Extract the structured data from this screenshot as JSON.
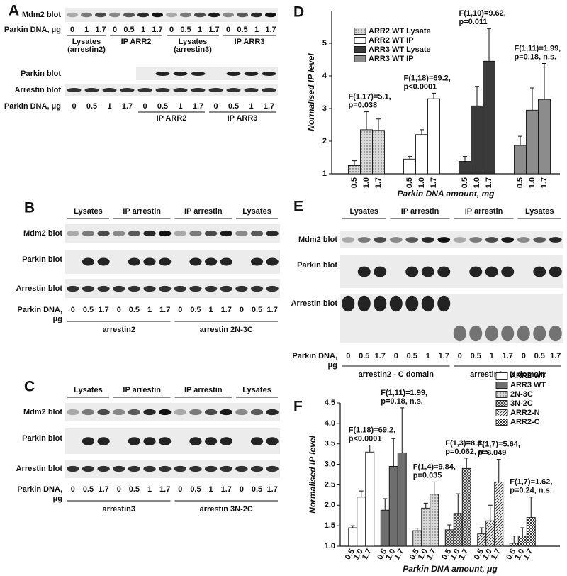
{
  "panel_letters": [
    "A",
    "B",
    "C",
    "D",
    "E",
    "F"
  ],
  "blots": {
    "A_top": {
      "rows": [
        "Mdm2 blot"
      ],
      "dna_label": [
        "Parkin DNA, μg"
      ],
      "groups": [
        {
          "label": [
            "Lysates",
            "(arrestin2)"
          ],
          "lanes": [
            "0",
            "1",
            "1.7"
          ]
        },
        {
          "label": [
            "IP ARR2"
          ],
          "lanes": [
            "0",
            "0.5",
            "1",
            "1.7"
          ]
        },
        {
          "label": [
            "Lysates",
            "(arrestin3)"
          ],
          "lanes": [
            "0",
            "0.5",
            "1",
            "1.7"
          ]
        },
        {
          "label": [
            "IP ARR3"
          ],
          "lanes": [
            "0",
            "0.5",
            "1",
            "1.7"
          ]
        }
      ]
    },
    "A_bottom": {
      "rows": [
        "Parkin blot",
        "Arrestin blot"
      ],
      "dna_label": [
        "Parkin DNA, μg"
      ],
      "groups": [
        {
          "lanes": [
            "0",
            "0.5",
            "1",
            "1.7"
          ]
        },
        {
          "label": [
            "IP ARR2"
          ],
          "lanes": [
            "0",
            "0.5",
            "1",
            "1.7"
          ]
        },
        {
          "label": [
            "IP ARR3"
          ],
          "lanes": [
            "0",
            "0.5",
            "1",
            "1.7"
          ]
        }
      ]
    },
    "B": {
      "rows": [
        "Mdm2 blot",
        "Parkin blot",
        "Arrestin blot"
      ],
      "dna_label": [
        "Parkin DNA,",
        "μg"
      ],
      "groups": [
        {
          "label": [
            "Lysates"
          ],
          "lanes": [
            "0",
            "0.5",
            "1.7"
          ]
        },
        {
          "label": [
            "IP arrestin"
          ],
          "lanes": [
            "0",
            "0.5",
            "1",
            "1.7"
          ]
        },
        {
          "label": [
            "IP arrestin"
          ],
          "lanes": [
            "0",
            "0.5",
            "1",
            "1.7"
          ]
        },
        {
          "label": [
            "Lysates"
          ],
          "lanes": [
            "0",
            "0.5",
            "1.7"
          ]
        }
      ],
      "constructs": [
        "arrestin2",
        "arrestin 2N-3C"
      ]
    },
    "C": {
      "rows": [
        "Mdm2 blot",
        "Parkin blot",
        "Arrestin blot"
      ],
      "dna_label": [
        "Parkin DNA,",
        "μg"
      ],
      "groups": [
        {
          "label": [
            "Lysates"
          ],
          "lanes": [
            "0",
            "0.5",
            "1.7"
          ]
        },
        {
          "label": [
            "IP arrestin"
          ],
          "lanes": [
            "0",
            "0.5",
            "1",
            "1.7"
          ]
        },
        {
          "label": [
            "IP arrestin"
          ],
          "lanes": [
            "0",
            "0.5",
            "1",
            "1.7"
          ]
        },
        {
          "label": [
            "Lysates"
          ],
          "lanes": [
            "0",
            "0.5",
            "1.7"
          ]
        }
      ],
      "constructs": [
        "arrestin3",
        "arrestin 3N-2C"
      ]
    },
    "E": {
      "rows": [
        "Mdm2 blot",
        "Parkin blot",
        "Arrestin blot"
      ],
      "dna_label": [
        "Parkin DNA,",
        "μg"
      ],
      "groups": [
        {
          "label": [
            "Lysates"
          ],
          "lanes": [
            "0",
            "0.5",
            "1.7"
          ]
        },
        {
          "label": [
            "IP arrestin"
          ],
          "lanes": [
            "0",
            "0.5",
            "1",
            "1.7"
          ]
        },
        {
          "label": [
            "IP arrestin"
          ],
          "lanes": [
            "0",
            "0.5",
            "1",
            "1.7"
          ]
        },
        {
          "label": [
            "Lysates"
          ],
          "lanes": [
            "0",
            "0.5",
            "1.7"
          ]
        }
      ],
      "constructs": [
        "arrestin2 - C domain",
        "arrestin2 - N domain"
      ]
    }
  },
  "chart_data": [
    {
      "type": "bar",
      "x_label": "Parkin DNA amount, mg",
      "y_label": "Normalised IP level",
      "categories": [
        "0.5",
        "1.0",
        "1.7"
      ],
      "ylim": [
        1,
        6
      ],
      "yticks": [
        1,
        2,
        3,
        4,
        5
      ],
      "series": [
        {
          "name": "ARR2 WT Lysate",
          "color": "#d9d9d9",
          "pattern": "dots",
          "values": [
            1.25,
            2.35,
            2.33
          ],
          "errors": [
            0.15,
            0.55,
            0.35
          ],
          "annotation": [
            "F(1,17)=5.1,",
            "p=0.038"
          ]
        },
        {
          "name": "ARR2 WT IP",
          "color": "#ffffff",
          "values": [
            1.45,
            2.2,
            3.3
          ],
          "errors": [
            0.08,
            0.15,
            0.17
          ],
          "annotation": [
            "F(1,18)=69.2,",
            "p<0.0001"
          ]
        },
        {
          "name": "ARR3 WT Lysate",
          "color": "#3a3a3a",
          "values": [
            1.38,
            3.08,
            4.45
          ],
          "errors": [
            0.15,
            0.6,
            1.0
          ],
          "annotation": [
            "F(1,10)=9.62,",
            "p=0.011"
          ]
        },
        {
          "name": "ARR3 WT IP",
          "color": "#8c8c8c",
          "values": [
            1.87,
            2.95,
            3.28
          ],
          "errors": [
            0.28,
            0.68,
            1.1
          ],
          "annotation": [
            "F(1,11)=1.99,",
            "p=0.18, n.s."
          ]
        }
      ]
    },
    {
      "type": "bar",
      "x_label": "Parkin DNA amount, μg",
      "y_label": "Normalised IP level",
      "categories": [
        "0.5",
        "1.0",
        "1.7"
      ],
      "ylim": [
        1,
        4.5
      ],
      "yticks": [
        {
          "value": 1,
          "label": "1.0"
        },
        {
          "value": 1.5,
          "label": "1.5"
        },
        {
          "value": 2,
          "label": "2.0"
        },
        {
          "value": 2.5,
          "label": "2.5"
        },
        {
          "value": 3,
          "label": "3.0"
        },
        {
          "value": 3.5,
          "label": "3.5"
        },
        {
          "value": 4,
          "label": "4.0"
        },
        {
          "value": 4.5,
          "label": "4.5"
        }
      ],
      "series": [
        {
          "name": "ARR2 WT",
          "color": "#ffffff",
          "values": [
            1.45,
            2.2,
            3.3
          ],
          "errors": [
            0.05,
            0.15,
            0.17
          ],
          "annotation": [
            "F(1,18)=69.2,",
            "p<0.0001"
          ]
        },
        {
          "name": "ARR3 WT",
          "color": "#6e6e6e",
          "values": [
            1.88,
            2.95,
            3.28
          ],
          "errors": [
            0.28,
            0.68,
            1.1
          ],
          "annotation": [
            "F(1,11)=1.99,",
            "p=0.18, n.s."
          ]
        },
        {
          "name": "2N-3C",
          "color": "#d9d9d9",
          "pattern": "dots",
          "values": [
            1.38,
            1.93,
            2.27
          ],
          "errors": [
            0.06,
            0.12,
            0.3
          ],
          "annotation": [
            "F(1,4)=9.84,",
            "p=0.035"
          ]
        },
        {
          "name": "3N-2C",
          "color": "#ffffff",
          "pattern": "crosshatch",
          "values": [
            1.4,
            1.8,
            2.9
          ],
          "errors": [
            0.12,
            0.48,
            0.25
          ],
          "annotation": [
            "F(1,3)=8.5,",
            "p=0.062, n.s."
          ]
        },
        {
          "name": "ARR2-N",
          "color": "#ffffff",
          "pattern": "diagonal",
          "values": [
            1.3,
            1.62,
            2.57
          ],
          "errors": [
            0.15,
            0.38,
            0.55
          ],
          "annotation": [
            "F(1,7)=5.64,",
            "p=0.049"
          ]
        },
        {
          "name": "ARR2-C",
          "color": "#ffffff",
          "pattern": "checker",
          "values": [
            1.07,
            1.25,
            1.7
          ],
          "errors": [
            0.18,
            0.2,
            0.5
          ],
          "annotation": [
            "F(1,7)=1.62,",
            "p=0.24, n.s."
          ]
        }
      ]
    }
  ]
}
